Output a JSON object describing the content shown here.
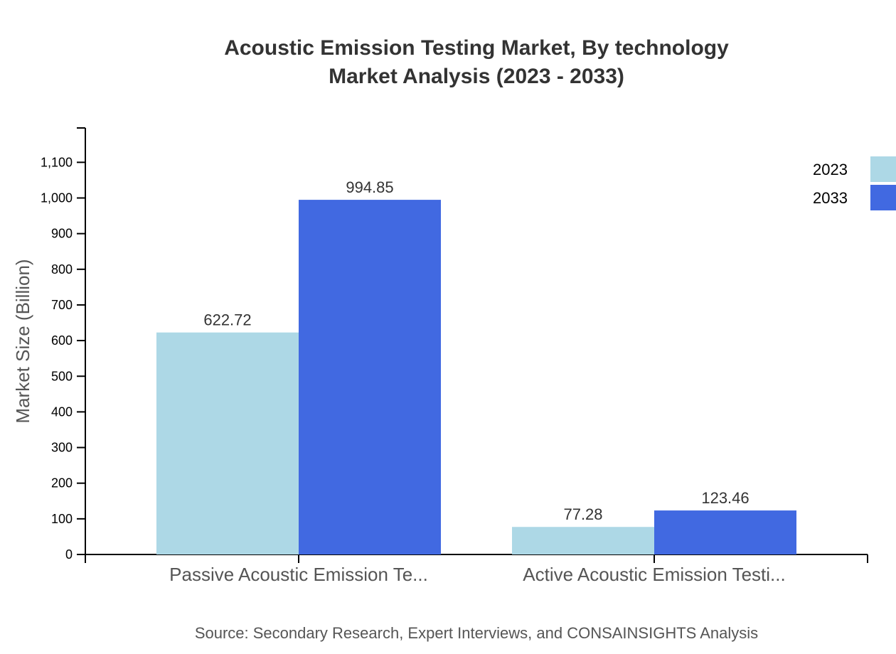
{
  "chart_data": {
    "type": "bar",
    "title": "Acoustic Emission Testing Market, By technology",
    "subtitle": "Market Analysis (2023 - 2033)",
    "xlabel": "",
    "ylabel": "Market Size (Billion)",
    "ylim": [
      0,
      1195
    ],
    "yticks": [
      0,
      100,
      200,
      300,
      400,
      500,
      600,
      700,
      800,
      900,
      1000,
      1100
    ],
    "ytick_labels": [
      "0",
      "100",
      "200",
      "300",
      "400",
      "500",
      "600",
      "700",
      "800",
      "900",
      "1,000",
      "1,100"
    ],
    "grid": false,
    "legend_position": "top-right",
    "categories": [
      "Passive Acoustic Emission Te...",
      "Active Acoustic Emission Testi..."
    ],
    "series": [
      {
        "name": "2023",
        "color": "#add8e6",
        "values": [
          622.72,
          77.28
        ],
        "labels": [
          "622.72",
          "77.28"
        ]
      },
      {
        "name": "2033",
        "color": "#4169e1",
        "values": [
          994.85,
          123.46
        ],
        "labels": [
          "994.85",
          "123.46"
        ]
      }
    ],
    "source": "Source: Secondary Research, Expert Interviews, and CONSAINSIGHTS Analysis"
  }
}
